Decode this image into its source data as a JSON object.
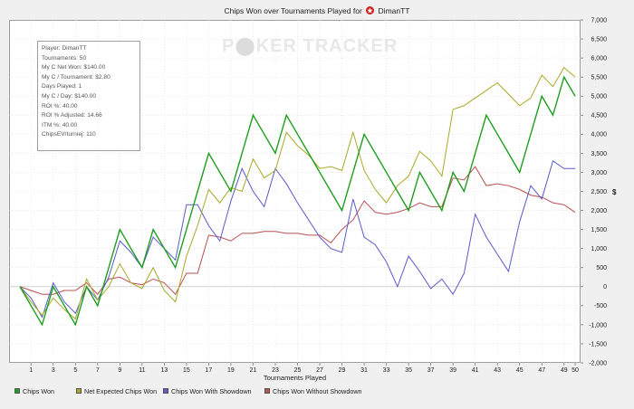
{
  "title": "Chips Won over Tournaments Played for",
  "player_label": "DimanTT",
  "watermark": {
    "left": "P",
    "right": "KER TRACKER"
  },
  "stats": [
    "Player: DimanTT",
    "Tournaments: 50",
    "My C Net Won: $140.00",
    "My C / Tournament: $2.80",
    "Days Played: 1",
    "My C / Day: $140.00",
    "ROI %: 40.00",
    "ROI % Adjusted: 14.66",
    "ITM %: 40.00",
    "ChipsEV/turniej: 110"
  ],
  "colors": {
    "green": "#1e9e1e",
    "olive": "#a8a826",
    "blue": "#5a5acc",
    "red": "#b85050"
  },
  "chart_data": {
    "type": "line",
    "xlabel": "Tournaments Played",
    "ylabel": "$",
    "xlim": [
      0,
      50
    ],
    "ylim": [
      -2000,
      7000
    ],
    "x_ticks": [
      1,
      3,
      5,
      7,
      9,
      11,
      13,
      15,
      17,
      19,
      21,
      23,
      25,
      27,
      29,
      31,
      33,
      35,
      37,
      39,
      41,
      43,
      45,
      47,
      49,
      50
    ],
    "y_ticks": [
      -2000,
      -1500,
      -1000,
      -500,
      0,
      500,
      1000,
      1500,
      2000,
      2500,
      3000,
      3500,
      4000,
      4500,
      5000,
      5500,
      6000,
      6500,
      7000
    ],
    "y_tick_labels": [
      "-2,000",
      "-1,500",
      "-1,000",
      "-500",
      "0",
      "500",
      "1,000",
      "1,500",
      "2,000",
      "2,500",
      "3,000",
      "3,500",
      "4,000",
      "4,500",
      "5,000",
      "5,500",
      "6,000",
      "6,500",
      "7,000"
    ],
    "x": [
      0,
      1,
      2,
      3,
      4,
      5,
      6,
      7,
      8,
      9,
      10,
      11,
      12,
      13,
      14,
      15,
      16,
      17,
      18,
      19,
      20,
      21,
      22,
      23,
      24,
      25,
      26,
      27,
      28,
      29,
      30,
      31,
      32,
      33,
      34,
      35,
      36,
      37,
      38,
      39,
      40,
      41,
      42,
      43,
      44,
      45,
      46,
      47,
      48,
      49,
      50
    ],
    "series": [
      {
        "name": "Chips Won",
        "color": "#1e9e1e",
        "values": [
          0,
          -500,
          -1000,
          0,
          -500,
          -1000,
          0,
          -500,
          500,
          1500,
          1000,
          500,
          1500,
          1000,
          500,
          1500,
          2500,
          3500,
          3000,
          2500,
          3500,
          4500,
          4000,
          3500,
          4500,
          4000,
          3500,
          3000,
          2500,
          2000,
          3000,
          4000,
          3500,
          3000,
          2500,
          2000,
          3000,
          2500,
          2000,
          3000,
          2500,
          3500,
          4500,
          4000,
          3500,
          3000,
          4000,
          5000,
          4500,
          5500,
          5000
        ]
      },
      {
        "name": "Net Expected Chips Won",
        "color": "#a8a826",
        "values": [
          0,
          -400,
          -750,
          -300,
          -600,
          -850,
          200,
          -350,
          0,
          600,
          100,
          -50,
          500,
          -100,
          -400,
          800,
          1600,
          2550,
          2200,
          2600,
          2500,
          3350,
          2850,
          3050,
          4050,
          3700,
          3450,
          3100,
          3150,
          3050,
          4050,
          3050,
          2550,
          2200,
          2650,
          2900,
          3550,
          3300,
          2900,
          4650,
          4750,
          4950,
          5150,
          5350,
          5050,
          4750,
          4950,
          5550,
          5250,
          5750,
          5500
        ]
      },
      {
        "name": "Chips Won With Showdown",
        "color": "#5a5acc",
        "values": [
          0,
          -300,
          -800,
          100,
          -400,
          -700,
          0,
          -350,
          250,
          1200,
          900,
          500,
          1300,
          1000,
          700,
          2150,
          2150,
          1600,
          1200,
          2250,
          3100,
          2500,
          2100,
          3100,
          2700,
          2200,
          1750,
          1300,
          1000,
          900,
          2300,
          1300,
          1100,
          650,
          0,
          800,
          400,
          -50,
          200,
          -200,
          350,
          1900,
          1300,
          850,
          400,
          1700,
          2650,
          2300,
          3300,
          3100,
          3100
        ]
      },
      {
        "name": "Chips Won Without Showdown",
        "color": "#b85050",
        "values": [
          0,
          -100,
          -200,
          -200,
          -100,
          -100,
          100,
          -200,
          200,
          250,
          100,
          50,
          200,
          100,
          -200,
          350,
          350,
          1350,
          1300,
          1200,
          1400,
          1400,
          1450,
          1450,
          1400,
          1400,
          1350,
          1350,
          1150,
          1500,
          1750,
          2250,
          1950,
          1900,
          1950,
          2050,
          2200,
          2100,
          2100,
          2850,
          2800,
          3150,
          2650,
          2700,
          2650,
          2550,
          2400,
          2350,
          2200,
          2150,
          1950
        ]
      }
    ]
  }
}
